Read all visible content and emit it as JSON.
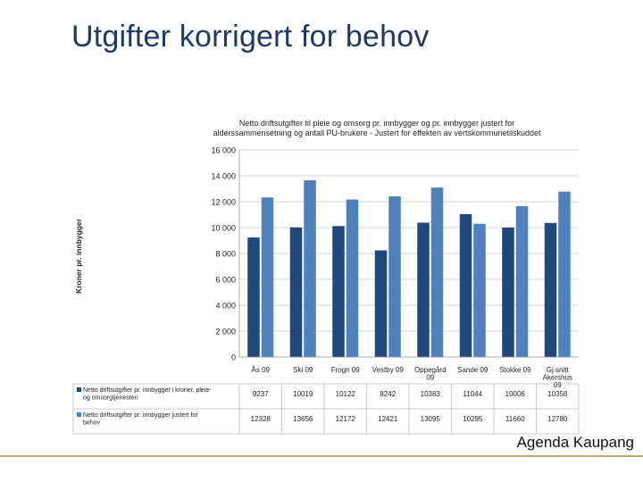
{
  "slide": {
    "title": "Utgifter korrigert for behov",
    "footer": "Agenda Kaupang"
  },
  "colors": {
    "series1": "#1f497d",
    "series2": "#4f81bd",
    "title": "#1f3864",
    "footer_line": "#c9a467"
  },
  "chart_data": {
    "type": "bar",
    "title_lines": [
      "Netto driftsutgifter til pleie og omsorg pr. innbygger og pr. innbygger justert for",
      "alderssammensetning og antall PU-brukere - Justert for effekten av vertskommunetilskuddet"
    ],
    "ylabel": "Kroner pr. innbygger",
    "xlabel": "",
    "ylim": [
      0,
      16000
    ],
    "yticks": [
      0,
      2000,
      4000,
      6000,
      8000,
      10000,
      12000,
      14000,
      16000
    ],
    "ytick_labels": [
      "0",
      "2 000",
      "4 000",
      "6 000",
      "8 000",
      "10 000",
      "12 000",
      "14 000",
      "16 000"
    ],
    "grid": true,
    "categories": [
      [
        "Ås 09"
      ],
      [
        "Ski 09"
      ],
      [
        "Frogn 09"
      ],
      [
        "Vestby 09"
      ],
      [
        "Oppegård",
        "09"
      ],
      [
        "Sande 09"
      ],
      [
        "Stokke 09"
      ],
      [
        "Gj.snitt",
        "Akershus",
        "09"
      ]
    ],
    "series": [
      {
        "label_lines": [
          "Netto driftsutgifter pr. innbygger i kroner, pleie-",
          "og omsorgtjenesten"
        ],
        "values": [
          9237,
          10019,
          10122,
          8242,
          10383,
          11044,
          10006,
          10358
        ],
        "value_labels": [
          "9237",
          "10019",
          "10122",
          "8242",
          "10383",
          "11044",
          "10006",
          "10358"
        ]
      },
      {
        "label_lines": [
          "Netto driftsutgifter pr. innbygger justert for",
          "behov"
        ],
        "values": [
          12328,
          13656,
          12172,
          12421,
          13095,
          10295,
          11660,
          12780
        ],
        "value_labels": [
          "12328",
          "13656",
          "12172",
          "12421",
          "13095",
          "10295",
          "11660",
          "12780"
        ]
      }
    ]
  }
}
